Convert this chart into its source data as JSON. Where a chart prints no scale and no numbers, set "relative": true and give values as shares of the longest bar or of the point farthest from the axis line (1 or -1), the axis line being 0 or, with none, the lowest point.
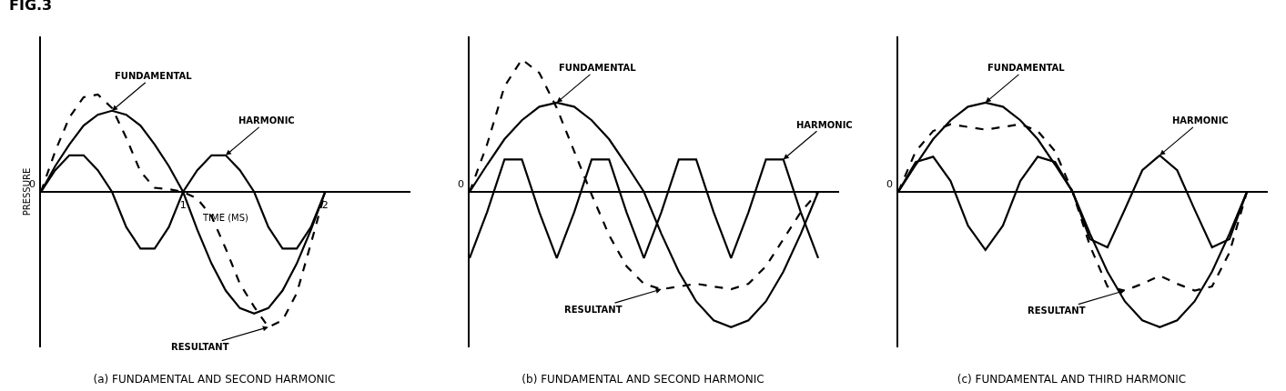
{
  "chart_data": [
    {
      "type": "line",
      "title": "(a) FUNDAMENTAL AND SECOND HARMONIC",
      "xlabel": "TIME (MS)",
      "ylabel": "PRESSURE",
      "relative": true,
      "x": [
        0,
        0.1,
        0.2,
        0.3,
        0.4,
        0.5,
        0.6,
        0.7,
        0.8,
        0.9,
        1,
        1.1,
        1.2,
        1.3,
        1.4,
        1.5,
        1.6,
        1.7,
        1.8,
        1.9,
        2
      ],
      "xlim": [
        0,
        2.6
      ],
      "xticks": [
        1,
        2
      ],
      "tick_labels": "x",
      "legend": false,
      "marker": "none",
      "annotations": [
        "0",
        "FIG.3"
      ],
      "series": [
        {
          "name": "FUNDAMENTAL",
          "color": "#000000",
          "line_style": "solid",
          "values": [
            0,
            0.19,
            0.35,
            0.49,
            0.57,
            0.6,
            0.57,
            0.49,
            0.35,
            0.19,
            0,
            -0.28,
            -0.53,
            -0.73,
            -0.86,
            -0.9,
            -0.86,
            -0.73,
            -0.53,
            -0.28,
            0
          ]
        },
        {
          "name": "HARMONIC",
          "color": "#000000",
          "line_style": "solid",
          "values": [
            0,
            0.16,
            0.27,
            0.27,
            0.16,
            0,
            -0.26,
            -0.42,
            -0.42,
            -0.26,
            0,
            0.16,
            0.27,
            0.27,
            0.16,
            0,
            -0.26,
            -0.42,
            -0.42,
            -0.26,
            0
          ]
        },
        {
          "name": "RESULTANT",
          "color": "#000000",
          "line_style": "dashed",
          "values": [
            0,
            0.3,
            0.55,
            0.7,
            0.72,
            0.62,
            0.4,
            0.15,
            0.03,
            0.02,
            0,
            -0.05,
            -0.18,
            -0.42,
            -0.68,
            -0.85,
            -1,
            -0.95,
            -0.75,
            -0.38,
            0
          ]
        }
      ]
    },
    {
      "type": "line",
      "title": "(b) FUNDAMENTAL AND SECOND HARMONIC",
      "relative": true,
      "categories": [
        null,
        null,
        null,
        null,
        null,
        null,
        null,
        null,
        null,
        null,
        null,
        null,
        null,
        null,
        null,
        null,
        null,
        null,
        null,
        null,
        null
      ],
      "tick_labels": false,
      "legend": false,
      "marker": "none",
      "annotations": [
        "0"
      ],
      "series": [
        {
          "name": "FUNDAMENTAL",
          "color": "#000000",
          "line_style": "solid",
          "values": [
            0,
            0.2,
            0.39,
            0.53,
            0.63,
            0.66,
            0.63,
            0.53,
            0.39,
            0.2,
            0,
            -0.31,
            -0.59,
            -0.81,
            -0.95,
            -1,
            -0.95,
            -0.81,
            -0.59,
            -0.31,
            0
          ]
        },
        {
          "name": "HARMONIC",
          "color": "#000000",
          "line_style": "solid",
          "values": [
            -0.49,
            -0.15,
            0.24,
            0.24,
            -0.15,
            -0.49,
            -0.15,
            0.24,
            0.24,
            -0.15,
            -0.49,
            -0.15,
            0.24,
            0.24,
            -0.15,
            -0.49,
            -0.15,
            0.24,
            0.24,
            -0.15,
            -0.49
          ]
        },
        {
          "name": "RESULTANT",
          "color": "#000000",
          "line_style": "dashed",
          "values": [
            0,
            0.35,
            0.78,
            0.98,
            0.88,
            0.62,
            0.3,
            -0.02,
            -0.32,
            -0.55,
            -0.68,
            -0.72,
            -0.7,
            -0.68,
            -0.7,
            -0.72,
            -0.68,
            -0.55,
            -0.35,
            -0.15,
            0
          ]
        }
      ]
    },
    {
      "type": "line",
      "title": "(c) FUNDAMENTAL AND THIRD HARMONIC",
      "relative": true,
      "categories": [
        null,
        null,
        null,
        null,
        null,
        null,
        null,
        null,
        null,
        null,
        null,
        null,
        null,
        null,
        null,
        null,
        null,
        null,
        null,
        null,
        null
      ],
      "tick_labels": false,
      "legend": false,
      "marker": "none",
      "annotations": [
        "0"
      ],
      "series": [
        {
          "name": "FUNDAMENTAL",
          "color": "#000000",
          "line_style": "solid",
          "values": [
            0,
            0.2,
            0.39,
            0.53,
            0.63,
            0.66,
            0.63,
            0.53,
            0.39,
            0.2,
            0,
            -0.31,
            -0.59,
            -0.81,
            -0.95,
            -1,
            -0.95,
            -0.81,
            -0.59,
            -0.31,
            0
          ]
        },
        {
          "name": "HARMONIC",
          "color": "#000000",
          "line_style": "solid",
          "values": [
            0,
            0.22,
            0.26,
            0.08,
            -0.25,
            -0.43,
            -0.25,
            0.08,
            0.26,
            0.22,
            0,
            -0.35,
            -0.41,
            -0.13,
            0.16,
            0.27,
            0.16,
            -0.13,
            -0.41,
            -0.35,
            0
          ]
        },
        {
          "name": "RESULTANT",
          "color": "#000000",
          "line_style": "dashed",
          "values": [
            0,
            0.3,
            0.45,
            0.5,
            0.48,
            0.46,
            0.48,
            0.5,
            0.45,
            0.3,
            0,
            -0.4,
            -0.7,
            -0.73,
            -0.68,
            -0.62,
            -0.68,
            -0.73,
            -0.7,
            -0.45,
            0
          ]
        }
      ]
    }
  ]
}
